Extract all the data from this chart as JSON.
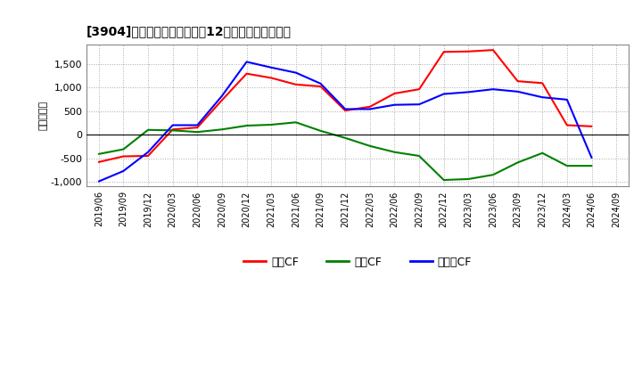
{
  "title": "[㤄］ キャッシュフローの12か月移動合計の推移",
  "title_str": "[3904]　キャッシュフローの12か月移動合計の推移",
  "ylabel": "（百万円）",
  "background_color": "#ffffff",
  "plot_bg_color": "#ffffff",
  "ylim": [
    -1100,
    1900
  ],
  "yticks": [
    -1000,
    -500,
    0,
    500,
    1000,
    1500
  ],
  "x_labels": [
    "2019/06",
    "2019/09",
    "2019/12",
    "2020/03",
    "2020/06",
    "2020/09",
    "2020/12",
    "2021/03",
    "2021/06",
    "2021/09",
    "2021/12",
    "2022/03",
    "2022/06",
    "2022/09",
    "2022/12",
    "2023/03",
    "2023/06",
    "2023/09",
    "2023/12",
    "2024/03",
    "2024/06",
    "2024/09"
  ],
  "営業CF_values": [
    -580,
    -460,
    -450,
    110,
    150,
    730,
    1290,
    1200,
    1060,
    1020,
    510,
    590,
    870,
    960,
    1750,
    1760,
    1790,
    1130,
    1090,
    200,
    175,
    null
  ],
  "投資CF_values": [
    -410,
    -310,
    100,
    90,
    55,
    110,
    190,
    210,
    260,
    80,
    -70,
    -240,
    -370,
    -450,
    -960,
    -940,
    -850,
    -590,
    -390,
    -660,
    -660,
    null
  ],
  "フリーCF_values": [
    -990,
    -770,
    -370,
    200,
    200,
    820,
    1540,
    1420,
    1310,
    1080,
    540,
    540,
    630,
    640,
    860,
    900,
    960,
    910,
    790,
    740,
    -490,
    null
  ],
  "legend_labels": [
    "営業CF",
    "投資CF",
    "フリーCF"
  ],
  "legend_colors": [
    "#ff0000",
    "#008000",
    "#0000ff"
  ]
}
